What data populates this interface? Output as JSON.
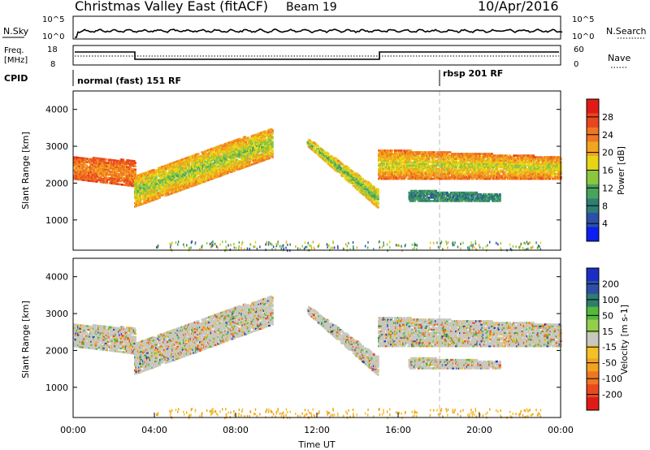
{
  "header": {
    "title": "Christmas Valley East (fitACF)",
    "beam": "Beam 19",
    "date": "10/Apr/2016"
  },
  "top_panels": {
    "nsky": {
      "label": "N.Sky",
      "ticks": [
        "10^5",
        "10^0"
      ],
      "right_label": "N.Search",
      "right_ticks": [
        "10^5",
        "10^0"
      ]
    },
    "freq": {
      "label_line1": "Freq.",
      "label_line2": "[MHz]",
      "ticks": [
        "18",
        "8"
      ],
      "right_label": "Nave",
      "right_ticks": [
        "60",
        "0"
      ]
    },
    "cpid": {
      "label": "CPID",
      "modes": [
        {
          "text": "normal (fast) 151 RF",
          "start_hour": 0
        },
        {
          "text": "rbsp 201 RF",
          "start_hour": 18
        }
      ]
    }
  },
  "power_colorbar": {
    "label": "Power [dB]",
    "ticks": [
      "4",
      "8",
      "12",
      "16",
      "20",
      "24",
      "28"
    ],
    "colors": [
      "#0a1ff0",
      "#2e4fa6",
      "#2f7d73",
      "#4aa35c",
      "#8cc63f",
      "#e7d417",
      "#f2a51f",
      "#f07622",
      "#e8471e",
      "#e01b17"
    ]
  },
  "velocity_colorbar": {
    "label": "Velocity [m s-1]",
    "ticks": [
      "200",
      "100",
      "50",
      "15",
      "-15",
      "-50",
      "-100",
      "-200"
    ],
    "colors": [
      "#1a2ec6",
      "#2f4fa6",
      "#2e7d6e",
      "#55b83c",
      "#93cf4c",
      "#c8c8c0",
      "#f2c12a",
      "#f2a21f",
      "#ef7722",
      "#e84a1d",
      "#e01b17"
    ]
  },
  "chart_data": [
    {
      "type": "heatmap",
      "name": "power",
      "ylabel": "Slant Range [km]",
      "yticks": [
        1000,
        2000,
        3000,
        4000
      ],
      "ylim": [
        180,
        4500
      ],
      "xlim_hours": [
        0,
        24
      ],
      "echo_regions": [
        {
          "t0": 0.0,
          "t1": 3.0,
          "low": [
            2100,
            1900
          ],
          "high": [
            2700,
            2600
          ],
          "level": 22,
          "core": 26
        },
        {
          "t0": 3.0,
          "t1": 9.8,
          "low": [
            1350,
            2700
          ],
          "high": [
            2200,
            3500
          ],
          "level": 14,
          "core": 22
        },
        {
          "t0": 11.5,
          "t1": 15.0,
          "low": [
            3000,
            1300
          ],
          "high": [
            3200,
            1800
          ],
          "level": 12,
          "core": 20
        },
        {
          "t0": 15.0,
          "t1": 24.0,
          "low": [
            2100,
            2100
          ],
          "high": [
            2900,
            2700
          ],
          "level": 16,
          "core": 24
        },
        {
          "t0": 16.5,
          "t1": 21.0,
          "low": [
            1500,
            1500
          ],
          "high": [
            1800,
            1700
          ],
          "level": 8,
          "core": 10
        }
      ]
    },
    {
      "type": "heatmap",
      "name": "velocity",
      "ylabel": "Slant Range [km]",
      "yticks": [
        1000,
        2000,
        3000,
        4000
      ],
      "ylim": [
        180,
        4500
      ],
      "xlim_hours": [
        0,
        24
      ],
      "xticks": [
        "00:00",
        "04:00",
        "08:00",
        "12:00",
        "16:00",
        "20:00",
        "00:00"
      ],
      "xlabel": "Time UT"
    }
  ]
}
